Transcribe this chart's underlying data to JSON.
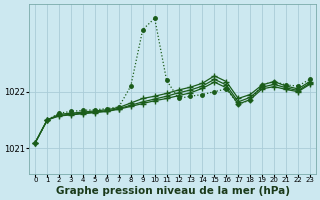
{
  "bg_color": "#cce8f0",
  "grid_color": "#aaccd8",
  "line_color": "#1a5c1a",
  "xlabel": "Graphe pression niveau de la mer (hPa)",
  "xlabel_fontsize": 7.5,
  "ylim": [
    1020.55,
    1023.55
  ],
  "xlim": [
    -0.5,
    23.5
  ],
  "yticks": [
    1021,
    1022
  ],
  "xticks": [
    0,
    1,
    2,
    3,
    4,
    5,
    6,
    7,
    8,
    9,
    10,
    11,
    12,
    13,
    14,
    15,
    16,
    17,
    18,
    19,
    20,
    21,
    22,
    23
  ],
  "series": [
    {
      "values": [
        1021.1,
        1021.5,
        1021.62,
        1021.65,
        1021.67,
        1021.68,
        1021.7,
        1021.73,
        1022.1,
        1023.1,
        1023.3,
        1022.2,
        1021.88,
        1021.92,
        1021.95,
        1022.0,
        1022.05,
        1021.78,
        1021.85,
        1022.12,
        1022.18,
        1022.12,
        1022.1,
        1022.22
      ],
      "linestyle": "dotted",
      "marker": "o",
      "markersize": 2.5,
      "linewidth": 0.9
    },
    {
      "values": [
        1021.1,
        1021.5,
        1021.6,
        1021.62,
        1021.64,
        1021.66,
        1021.68,
        1021.72,
        1021.8,
        1021.88,
        1021.92,
        1021.97,
        1022.03,
        1022.08,
        1022.15,
        1022.28,
        1022.18,
        1021.88,
        1021.95,
        1022.12,
        1022.18,
        1022.1,
        1022.05,
        1022.18
      ],
      "linestyle": "solid",
      "marker": "+",
      "markersize": 4,
      "linewidth": 0.9
    },
    {
      "values": [
        1021.1,
        1021.5,
        1021.58,
        1021.6,
        1021.62,
        1021.64,
        1021.66,
        1021.7,
        1021.76,
        1021.82,
        1021.87,
        1021.92,
        1021.98,
        1022.03,
        1022.1,
        1022.22,
        1022.12,
        1021.82,
        1021.9,
        1022.08,
        1022.13,
        1022.07,
        1022.02,
        1022.15
      ],
      "linestyle": "solid",
      "marker": "+",
      "markersize": 4,
      "linewidth": 0.9
    },
    {
      "values": [
        1021.1,
        1021.5,
        1021.57,
        1021.59,
        1021.61,
        1021.63,
        1021.65,
        1021.69,
        1021.74,
        1021.79,
        1021.84,
        1021.88,
        1021.93,
        1021.98,
        1022.06,
        1022.17,
        1022.07,
        1021.78,
        1021.86,
        1022.05,
        1022.09,
        1022.04,
        1022.0,
        1022.13
      ],
      "linestyle": "solid",
      "marker": "+",
      "markersize": 4,
      "linewidth": 0.9
    }
  ]
}
